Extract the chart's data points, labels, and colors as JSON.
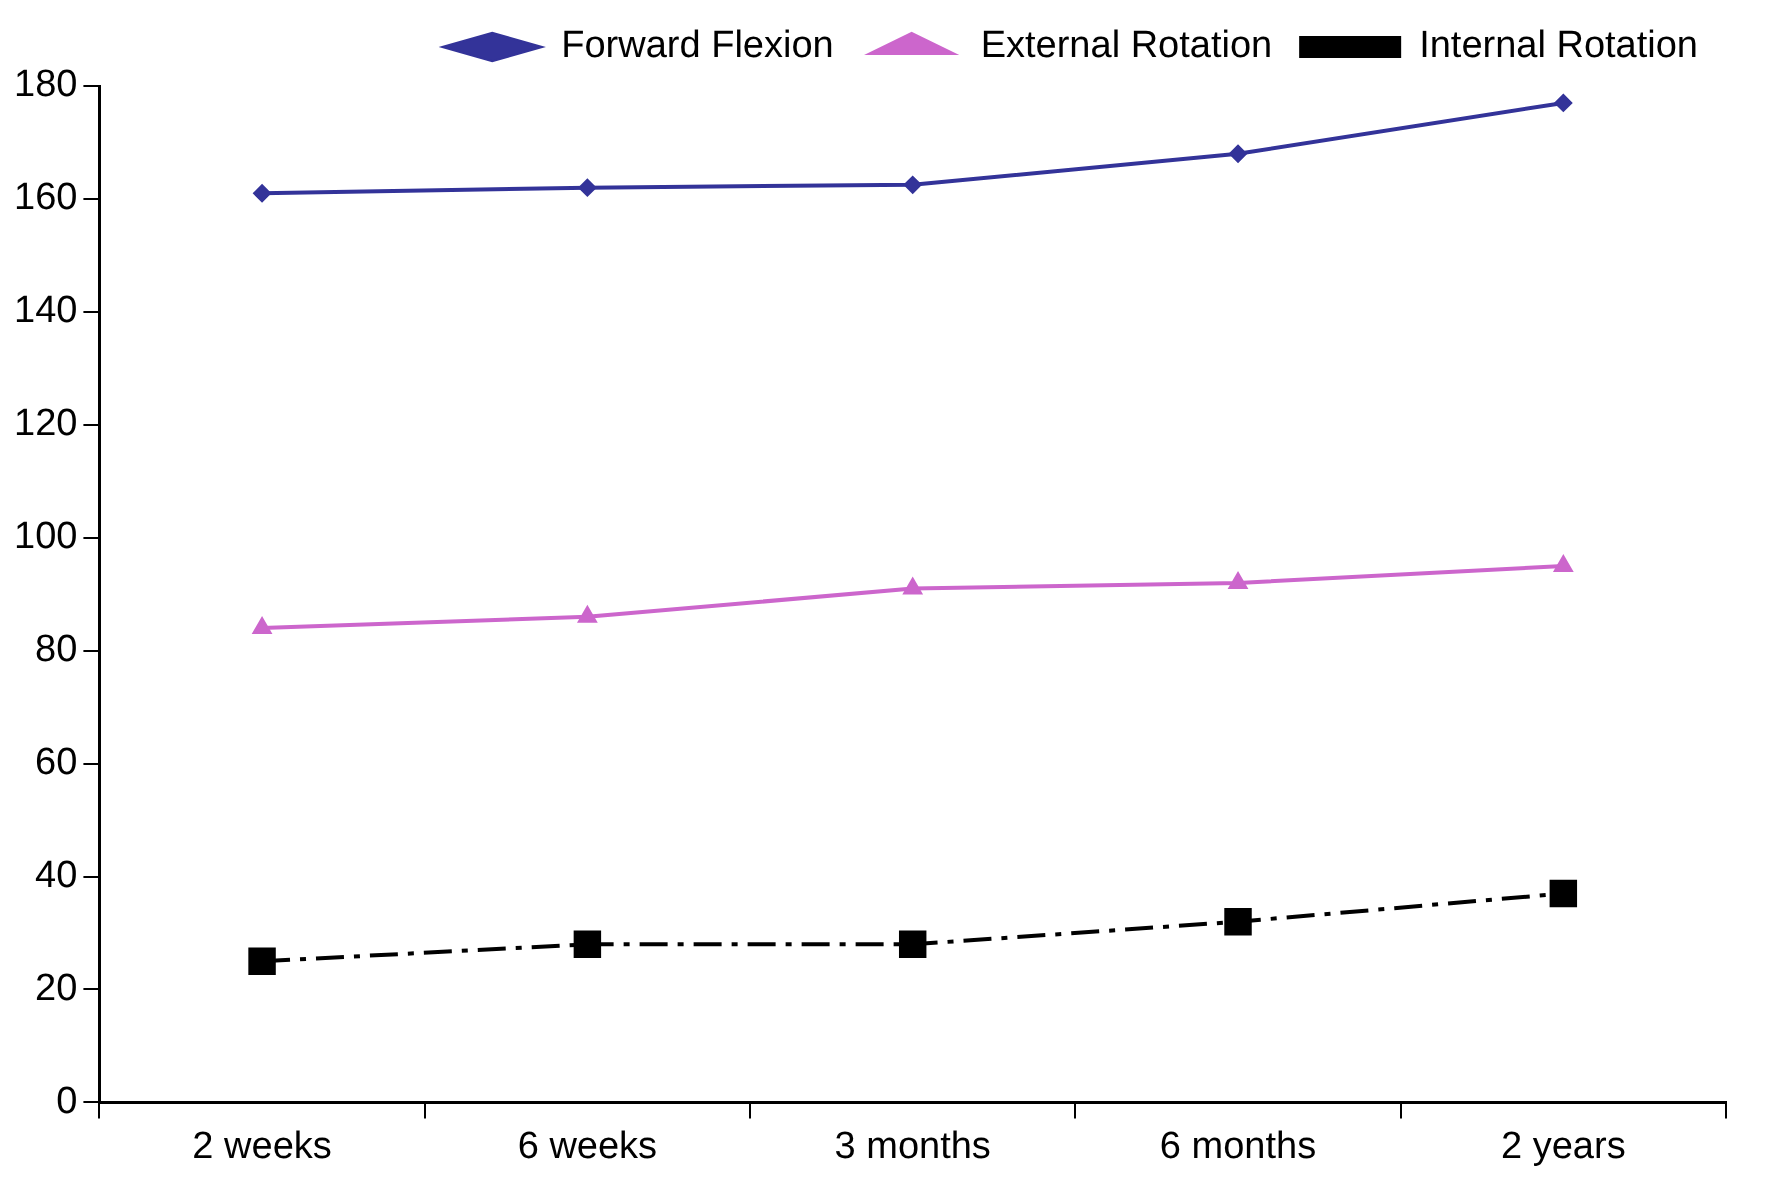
{
  "chart_data": {
    "type": "line",
    "categories": [
      "2 weeks",
      "6 weeks",
      "3 months",
      "6 months",
      "2 years"
    ],
    "ylim": [
      0,
      180
    ],
    "yticks": [
      0,
      20,
      40,
      60,
      80,
      100,
      120,
      140,
      160,
      180
    ],
    "grid": false,
    "legend": "top",
    "series": [
      {
        "name": "Forward Flexion",
        "color": "#333399",
        "marker": "diamond",
        "line_style": "solid",
        "values": [
          161,
          162,
          162.5,
          168,
          177
        ]
      },
      {
        "name": "External Rotation",
        "color": "#cc66cc",
        "marker": "triangle",
        "line_style": "solid",
        "values": [
          84,
          86,
          91,
          92,
          95
        ]
      },
      {
        "name": "Internal Rotation",
        "color": "#000000",
        "marker": "square",
        "line_style": "dashdot",
        "values": [
          25,
          28,
          28,
          32,
          37
        ]
      }
    ]
  }
}
